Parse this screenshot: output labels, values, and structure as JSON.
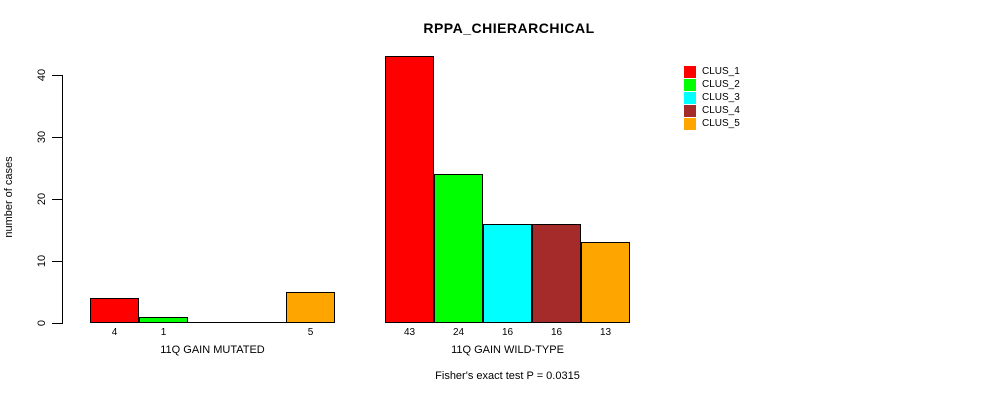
{
  "chart_data": {
    "type": "bar",
    "title": "RPPA_CHIERARCHICAL",
    "ylabel": "number of cases",
    "ylim": [
      0,
      40
    ],
    "yticks": [
      0,
      10,
      20,
      30,
      40
    ],
    "grid": false,
    "legend_position": "top-right",
    "categories": [
      "11Q GAIN MUTATED",
      "11Q GAIN WILD-TYPE"
    ],
    "series": [
      {
        "name": "CLUS_1",
        "color": "#ff0000",
        "values": [
          4,
          43
        ]
      },
      {
        "name": "CLUS_2",
        "color": "#00ff00",
        "values": [
          1,
          24
        ]
      },
      {
        "name": "CLUS_3",
        "color": "#00ffff",
        "values": [
          0,
          16
        ]
      },
      {
        "name": "CLUS_4",
        "color": "#a52a2a",
        "values": [
          0,
          16
        ]
      },
      {
        "name": "CLUS_5",
        "color": "#ffa500",
        "values": [
          5,
          13
        ]
      }
    ],
    "bar_value_labels": {
      "11Q GAIN MUTATED": [
        "4",
        "1",
        "5"
      ],
      "11Q GAIN WILD-TYPE": [
        "43",
        "24",
        "16",
        "16",
        "13"
      ]
    },
    "annotation": "Fisher's exact test P = 0.0315"
  }
}
